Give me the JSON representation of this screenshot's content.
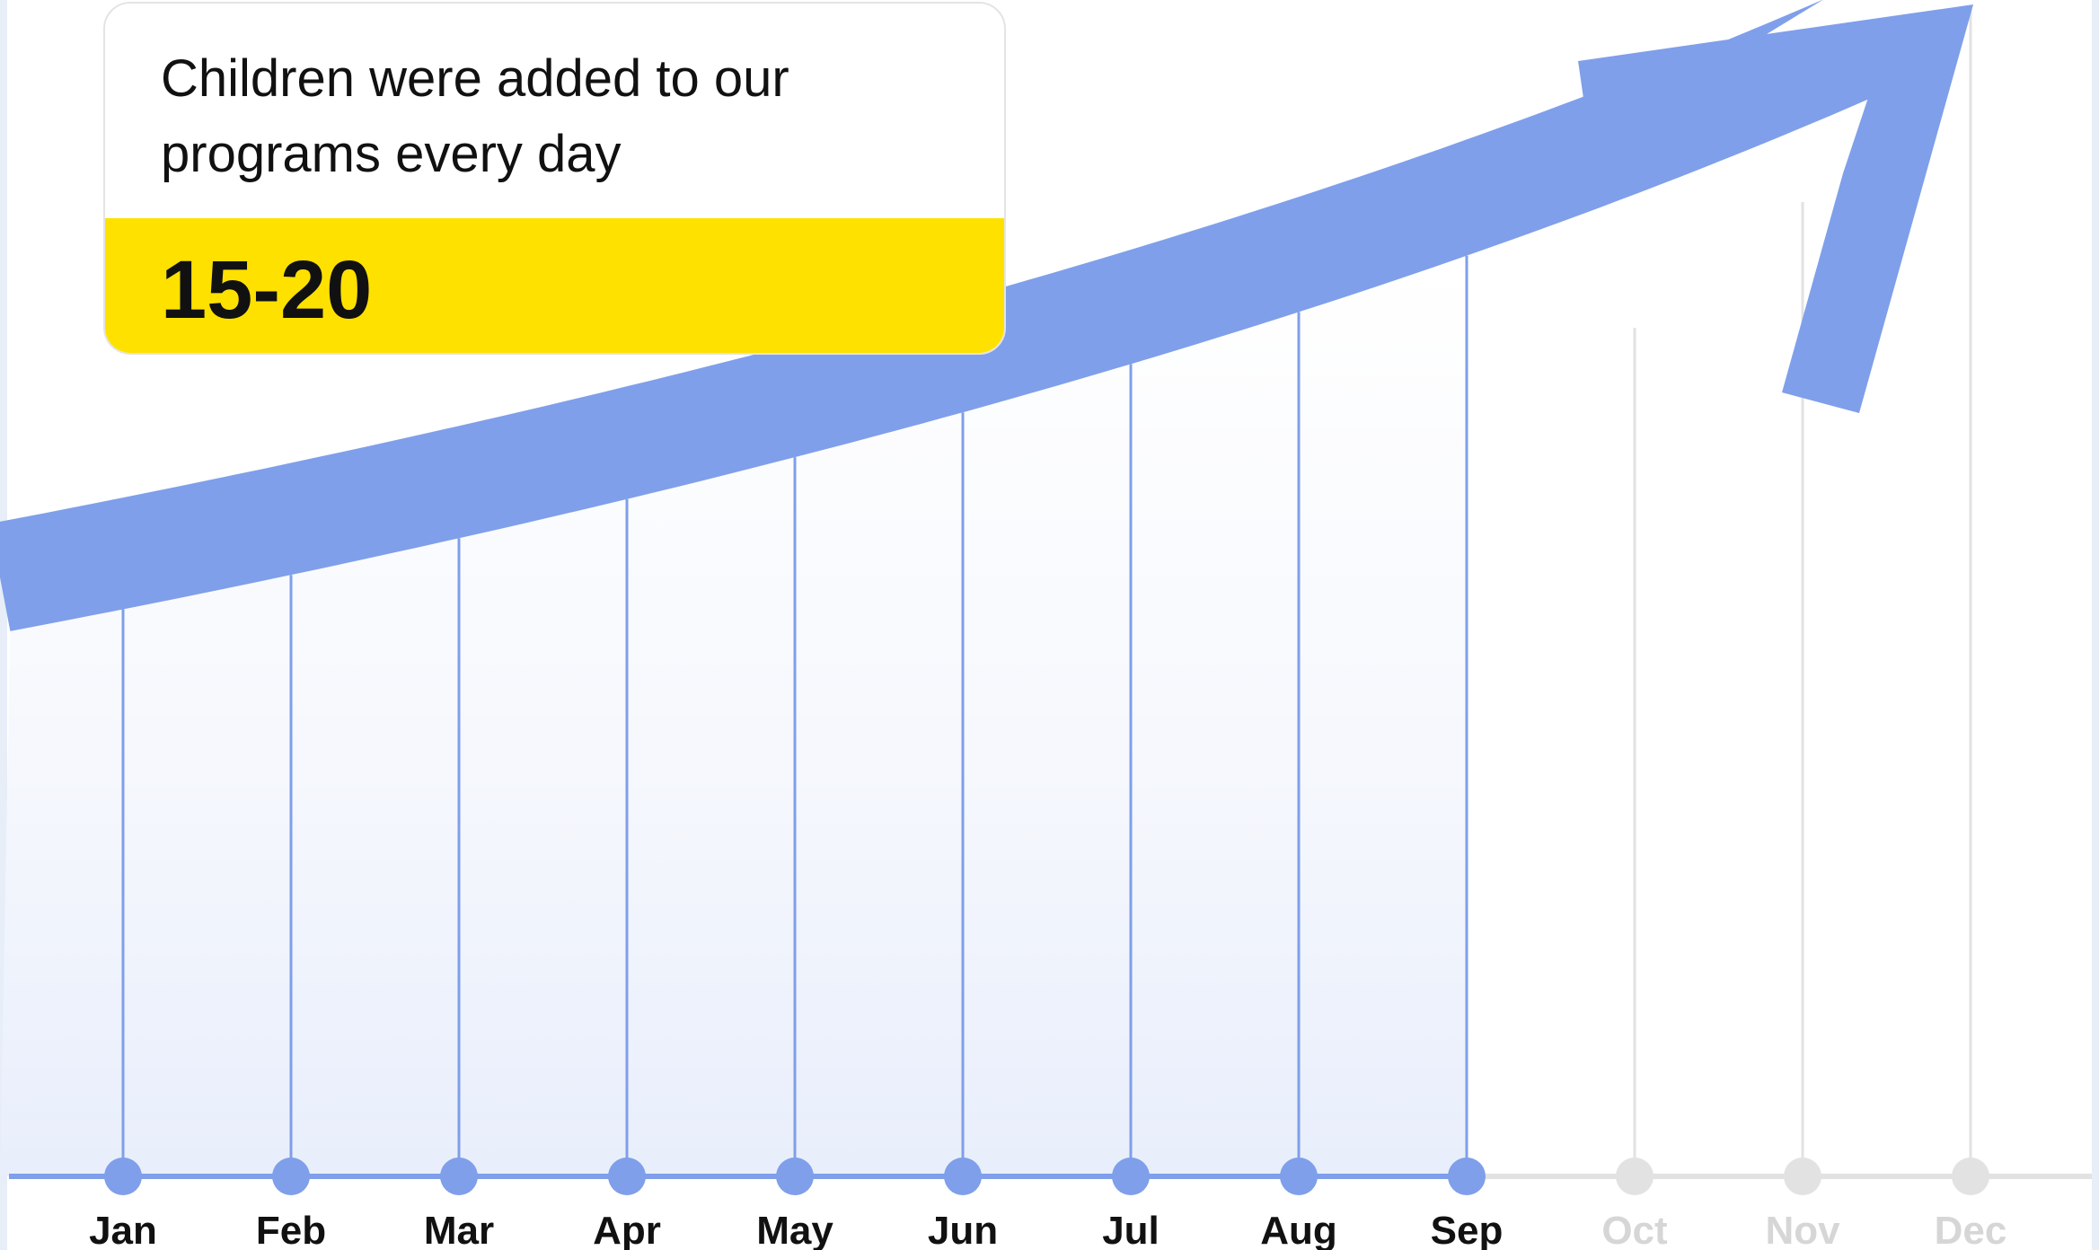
{
  "callout": {
    "text": "Children were added to our\nprograms every day",
    "value": "15-20",
    "band_color": "#ffe100"
  },
  "chart_data": {
    "type": "line",
    "categories": [
      "Jan",
      "Feb",
      "Mar",
      "Apr",
      "May",
      "Jun",
      "Jul",
      "Aug",
      "Sep",
      "Oct",
      "Nov",
      "Dec"
    ],
    "active_count": 9,
    "colors": {
      "active": "#7f9fea",
      "inactive": "#e2e2e2",
      "active_label": "#111111",
      "inactive_label": "#d6d6d6"
    },
    "title": "",
    "xlabel": "",
    "ylabel": "",
    "grid": true
  }
}
